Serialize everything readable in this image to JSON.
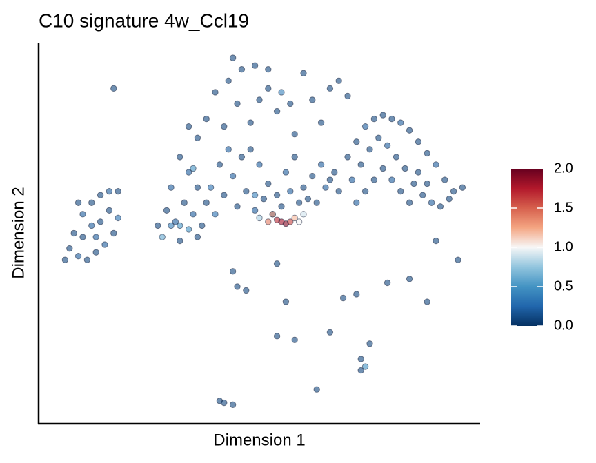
{
  "chart_data": {
    "type": "scatter",
    "title": "C10 signature 4w_Ccl19",
    "x_label": "Dimension 1",
    "y_label": "Dimension 2",
    "xlim": [
      0,
      100
    ],
    "ylim": [
      0,
      100
    ],
    "x": [
      8,
      10,
      12,
      14,
      16,
      18,
      7,
      9,
      11,
      13,
      15,
      17,
      18,
      10,
      12,
      14,
      16,
      13,
      6,
      9,
      32,
      34,
      36,
      38,
      40,
      42,
      44,
      46,
      48,
      50,
      52,
      54,
      56,
      58,
      60,
      62,
      64,
      66,
      68,
      33,
      35,
      37,
      39,
      41,
      43,
      45,
      47,
      49,
      51,
      53,
      55,
      57,
      59,
      61,
      63,
      65,
      67,
      30,
      29,
      31,
      70,
      72,
      74,
      76,
      78,
      80,
      82,
      84,
      86,
      88,
      90,
      92,
      94,
      96,
      71,
      73,
      75,
      77,
      79,
      81,
      83,
      85,
      87,
      89,
      91,
      93,
      72,
      74,
      76,
      78,
      80,
      82,
      84,
      86,
      88,
      40,
      43,
      46,
      49,
      52,
      45,
      50,
      54,
      57,
      62,
      66,
      68,
      70,
      64,
      38,
      42,
      36,
      48,
      58,
      55,
      44,
      52,
      17,
      60,
      34,
      44,
      45,
      47,
      54,
      56,
      69,
      72,
      54,
      58,
      66,
      73,
      75,
      73,
      63,
      41,
      42,
      44,
      95,
      90,
      88,
      79,
      84,
      32,
      36,
      27,
      55,
      56,
      54,
      57,
      52,
      58,
      53,
      59,
      60,
      50,
      32,
      30,
      34,
      28,
      35,
      74,
      49
    ],
    "y": [
      50,
      55,
      58,
      60,
      61,
      61,
      46,
      44,
      43,
      45,
      47,
      50,
      54,
      49,
      52,
      53,
      56,
      49,
      43,
      58,
      70,
      66,
      62,
      58,
      55,
      60,
      65,
      70,
      72,
      68,
      63,
      60,
      66,
      70,
      62,
      65,
      68,
      64,
      61,
      58,
      55,
      52,
      62,
      68,
      72,
      57,
      61,
      56,
      59,
      55,
      57,
      61,
      58,
      59,
      58,
      62,
      66,
      62,
      56,
      53,
      70,
      74,
      78,
      80,
      81,
      80,
      79,
      77,
      74,
      71,
      68,
      64,
      61,
      62,
      64,
      68,
      72,
      75,
      73,
      70,
      67,
      63,
      60,
      58,
      57,
      59,
      58,
      61,
      64,
      67,
      64,
      61,
      58,
      66,
      63,
      87,
      90,
      93,
      94,
      93,
      84,
      85,
      82,
      84,
      85,
      88,
      90,
      86,
      79,
      80,
      78,
      75,
      79,
      76,
      87,
      96,
      88,
      88,
      92,
      78,
      40,
      36,
      35,
      42,
      32,
      33,
      34,
      23,
      22,
      24,
      17,
      21,
      14,
      9,
      6,
      5.5,
      5,
      43,
      48,
      32,
      37,
      38,
      48,
      49,
      52,
      53,
      52.5,
      53.5,
      53,
      53,
      54,
      55,
      53,
      55,
      54,
      52,
      52,
      51,
      49,
      67,
      15,
      60
    ],
    "values": [
      0.1,
      0.2,
      0.1,
      0.1,
      0.2,
      0.1,
      0.1,
      0.2,
      0.1,
      0.1,
      0.2,
      0.1,
      0.3,
      0.1,
      0.2,
      0.1,
      0.1,
      0.2,
      0.1,
      0.1,
      0.1,
      0.2,
      0.1,
      0.1,
      0.3,
      0.1,
      0.2,
      0.1,
      0.1,
      0.2,
      0.1,
      0.1,
      0.2,
      0.1,
      0.1,
      0.1,
      0.2,
      0.1,
      0.1,
      0.1,
      0.2,
      0.1,
      0.3,
      0.1,
      0.2,
      0.1,
      0.1,
      0.2,
      0.1,
      0.1,
      0.1,
      0.2,
      0.1,
      0.1,
      0.1,
      0.2,
      0.1,
      0.2,
      0.1,
      0.2,
      0.1,
      0.1,
      0.2,
      0.1,
      0.1,
      0.1,
      0.2,
      0.1,
      0.1,
      0.1,
      0.2,
      0.1,
      0.1,
      0.1,
      0.2,
      0.1,
      0.1,
      0.1,
      0.2,
      0.1,
      0.1,
      0.1,
      0.1,
      0.2,
      0.1,
      0.1,
      0.2,
      0.1,
      0.1,
      0.1,
      0.2,
      0.1,
      0.1,
      0.1,
      0.1,
      0.1,
      0.1,
      0.1,
      0.1,
      0.1,
      0.1,
      0.1,
      0.1,
      0.1,
      0.1,
      0.1,
      0.1,
      0.1,
      0.1,
      0.1,
      0.1,
      0.1,
      0.1,
      0.1,
      0.4,
      0.1,
      0.1,
      0.1,
      0.1,
      0.1,
      0.1,
      0.1,
      0.1,
      0.1,
      0.1,
      0.1,
      0.1,
      0.1,
      0.1,
      0.1,
      0.1,
      0.1,
      0.1,
      0.1,
      0.1,
      0.1,
      0.1,
      0.1,
      0.1,
      0.1,
      0.1,
      0.1,
      0.1,
      0.1,
      0.1,
      1.8,
      1.9,
      1.7,
      1.6,
      1.4,
      1.2,
      1.3,
      1.0,
      0.9,
      0.8,
      0.5,
      0.4,
      0.5,
      0.6,
      0.5,
      0.5,
      0.4
    ],
    "colorbar": {
      "lim": [
        0,
        2
      ],
      "ticks": [
        {
          "value": 0,
          "label": "0.0"
        },
        {
          "value": 0.5,
          "label": "0.5"
        },
        {
          "value": 1,
          "label": "1.0"
        },
        {
          "value": 1.5,
          "label": "1.5"
        },
        {
          "value": 2,
          "label": "2.0"
        }
      ],
      "colors": [
        "#053061",
        "#2166ac",
        "#4393c3",
        "#92c5de",
        "#f7f7f7",
        "#f4a582",
        "#d6604d",
        "#b2182b",
        "#67001f"
      ]
    }
  }
}
